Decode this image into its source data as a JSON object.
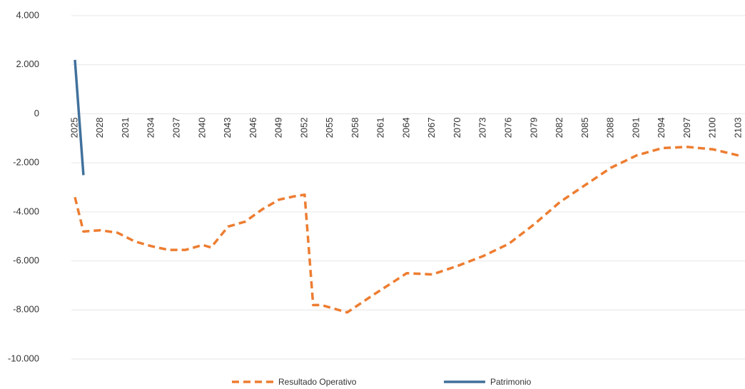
{
  "chart_data": {
    "type": "line",
    "series": [
      {
        "name": "Resultado Operativo",
        "color": "#ed7d31",
        "dashed": true,
        "x": [
          2025,
          2026,
          2028,
          2030,
          2032,
          2034,
          2036,
          2038,
          2040,
          2041,
          2043,
          2045,
          2047,
          2049,
          2051,
          2052,
          2053,
          2054,
          2056,
          2057,
          2060,
          2064,
          2067,
          2070,
          2073,
          2076,
          2079,
          2082,
          2085,
          2088,
          2091,
          2094,
          2097,
          2100,
          2103
        ],
        "values": [
          -3400,
          -4800,
          -4750,
          -4850,
          -5200,
          -5400,
          -5550,
          -5550,
          -5350,
          -5450,
          -4600,
          -4400,
          -3900,
          -3500,
          -3350,
          -3300,
          -7800,
          -7800,
          -8000,
          -8100,
          -7400,
          -6500,
          -6550,
          -6200,
          -5800,
          -5300,
          -4500,
          -3600,
          -2900,
          -2200,
          -1700,
          -1400,
          -1350,
          -1450,
          -1700
        ]
      },
      {
        "name": "Patrimonio",
        "color": "#41719c",
        "dashed": false,
        "x": [
          2025,
          2026
        ],
        "values": [
          2200,
          -2500
        ]
      }
    ],
    "xlim": [
      2025,
      2103
    ],
    "xticks": [
      2025,
      2028,
      2031,
      2034,
      2037,
      2040,
      2043,
      2046,
      2049,
      2052,
      2055,
      2058,
      2061,
      2064,
      2067,
      2070,
      2073,
      2076,
      2079,
      2082,
      2085,
      2088,
      2091,
      2094,
      2097,
      2100,
      2103
    ],
    "ylim": [
      -10000,
      4000
    ],
    "yticks": [
      {
        "value": -10000,
        "label": "-10.000"
      },
      {
        "value": -8000,
        "label": "-8.000"
      },
      {
        "value": -6000,
        "label": "-6.000"
      },
      {
        "value": -4000,
        "label": "-4.000"
      },
      {
        "value": -2000,
        "label": "-2.000"
      },
      0,
      {
        "value": 2000,
        "label": "2.000"
      },
      {
        "value": 4000,
        "label": "4.000"
      }
    ],
    "grid": true,
    "legend": "bottom"
  }
}
